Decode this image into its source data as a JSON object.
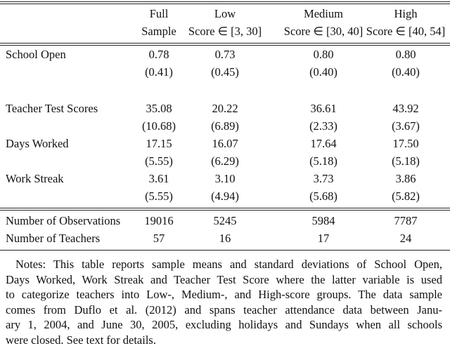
{
  "table": {
    "columns": [
      {
        "line1": "Full",
        "line2": "Sample"
      },
      {
        "line1": "Low",
        "line2": "Score ∈ [3, 30]"
      },
      {
        "line1": "Medium",
        "line2": "Score ∈ [30, 40]"
      },
      {
        "line1": "High",
        "line2": "Score ∈ [40, 54]"
      }
    ],
    "rows": [
      {
        "label": "School Open",
        "means": [
          "0.78",
          "0.73",
          "0.80",
          "0.80"
        ],
        "sds": [
          "(0.41)",
          "(0.45)",
          "(0.40)",
          "(0.40)"
        ]
      },
      {
        "label": "Teacher Test Scores",
        "means": [
          "35.08",
          "20.22",
          "36.61",
          "43.92"
        ],
        "sds": [
          "(10.68)",
          "(6.89)",
          "(2.33)",
          "(3.67)"
        ]
      },
      {
        "label": "Days Worked",
        "means": [
          "17.15",
          "16.07",
          "17.64",
          "17.50"
        ],
        "sds": [
          "(5.55)",
          "(6.29)",
          "(5.18)",
          "(5.18)"
        ]
      },
      {
        "label": "Work Streak",
        "means": [
          "3.61",
          "3.10",
          "3.73",
          "3.86"
        ],
        "sds": [
          "(5.55)",
          "(4.94)",
          "(5.68)",
          "(5.82)"
        ]
      }
    ],
    "counts": [
      {
        "label": "Number of Observations",
        "values": [
          "19016",
          "5245",
          "5984",
          "7787"
        ]
      },
      {
        "label": "Number of Teachers",
        "values": [
          "57",
          "16",
          "17",
          "24"
        ]
      }
    ]
  },
  "notes": [
    "Notes: This table reports sample means and standard deviations of School Open,",
    "Days Worked, Work Streak and Teacher Test Score where the latter variable is used",
    "to categorize teachers into Low-, Medium-, and High-score groups. The data sample",
    "comes from Duflo et al. (2012) and spans teacher attendance data between Janu-",
    "ary 1, 2004, and June 30, 2005, excluding holidays and Sundays when all schools",
    "were closed. See text for details."
  ]
}
